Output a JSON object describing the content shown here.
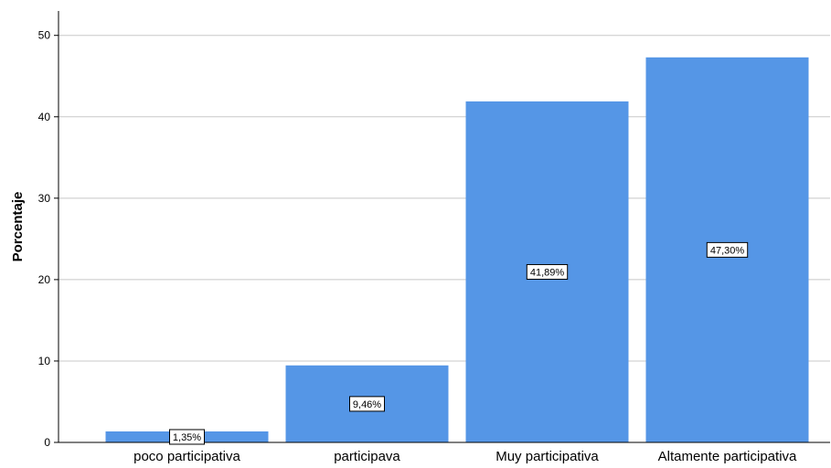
{
  "chart_data": {
    "type": "bar",
    "categories": [
      "poco participativa",
      "participava",
      "Muy participativa",
      "Altamente participativa"
    ],
    "values": [
      1.35,
      9.46,
      41.89,
      47.3
    ],
    "data_labels": [
      "1,35%",
      "9,46%",
      "41,89%",
      "47,30%"
    ],
    "ylabel": "Porcentaje",
    "xlabel": "",
    "ylim": [
      0,
      53
    ],
    "yticks": [
      0,
      10,
      20,
      30,
      40,
      50
    ],
    "grid": "horizontal",
    "colors": {
      "bar": "#5596e6",
      "grid": "#c8c8c8",
      "axis": "#000000"
    }
  }
}
